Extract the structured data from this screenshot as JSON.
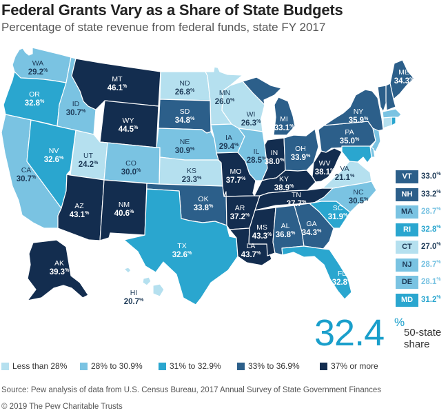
{
  "title": "Federal Grants Vary as a Share of State Budgets",
  "subtitle": "Percentage of state revenue from federal funds, state FY 2017",
  "colors": {
    "c1": "#b5e0ef",
    "c2": "#7ac3e2",
    "c3": "#2aa6cf",
    "c4": "#2c5f8a",
    "c5": "#132d4f"
  },
  "legend": [
    {
      "label": "Less than 28%",
      "color": "c1"
    },
    {
      "label": "28% to 30.9%",
      "color": "c2"
    },
    {
      "label": "31% to 32.9%",
      "color": "c3"
    },
    {
      "label": "33% to 36.9%",
      "color": "c4"
    },
    {
      "label": "37% or more",
      "color": "c5"
    }
  ],
  "states": [
    {
      "abbr": "WA",
      "value": "29.2",
      "color": "c2"
    },
    {
      "abbr": "OR",
      "value": "32.8",
      "color": "c3"
    },
    {
      "abbr": "CA",
      "value": "30.7",
      "color": "c2"
    },
    {
      "abbr": "ID",
      "value": "30.7",
      "color": "c2"
    },
    {
      "abbr": "NV",
      "value": "32.6",
      "color": "c3"
    },
    {
      "abbr": "MT",
      "value": "46.1",
      "color": "c5"
    },
    {
      "abbr": "WY",
      "value": "44.5",
      "color": "c5"
    },
    {
      "abbr": "UT",
      "value": "24.2",
      "color": "c1"
    },
    {
      "abbr": "AZ",
      "value": "43.1",
      "color": "c5"
    },
    {
      "abbr": "CO",
      "value": "30.0",
      "color": "c2"
    },
    {
      "abbr": "NM",
      "value": "40.6",
      "color": "c5"
    },
    {
      "abbr": "ND",
      "value": "26.8",
      "color": "c1"
    },
    {
      "abbr": "SD",
      "value": "34.8",
      "color": "c4"
    },
    {
      "abbr": "NE",
      "value": "30.9",
      "color": "c2"
    },
    {
      "abbr": "KS",
      "value": "23.3",
      "color": "c1"
    },
    {
      "abbr": "OK",
      "value": "33.8",
      "color": "c4"
    },
    {
      "abbr": "TX",
      "value": "32.6",
      "color": "c3"
    },
    {
      "abbr": "MN",
      "value": "26.0",
      "color": "c1"
    },
    {
      "abbr": "IA",
      "value": "29.4",
      "color": "c2"
    },
    {
      "abbr": "MO",
      "value": "37.7",
      "color": "c5"
    },
    {
      "abbr": "AR",
      "value": "37.2",
      "color": "c5"
    },
    {
      "abbr": "LA",
      "value": "43.7",
      "color": "c5"
    },
    {
      "abbr": "WI",
      "value": "26.3",
      "color": "c1"
    },
    {
      "abbr": "IL",
      "value": "28.5",
      "color": "c2"
    },
    {
      "abbr": "MI",
      "value": "33.1",
      "color": "c4"
    },
    {
      "abbr": "IN",
      "value": "38.0",
      "color": "c5"
    },
    {
      "abbr": "OH",
      "value": "33.9",
      "color": "c4"
    },
    {
      "abbr": "KY",
      "value": "38.9",
      "color": "c5"
    },
    {
      "abbr": "TN",
      "value": "37.7",
      "color": "c5"
    },
    {
      "abbr": "MS",
      "value": "43.3",
      "color": "c5"
    },
    {
      "abbr": "AL",
      "value": "36.8",
      "color": "c4"
    },
    {
      "abbr": "GA",
      "value": "34.3",
      "color": "c4"
    },
    {
      "abbr": "FL",
      "value": "32.8",
      "color": "c3"
    },
    {
      "abbr": "SC",
      "value": "31.9",
      "color": "c3"
    },
    {
      "abbr": "NC",
      "value": "30.5",
      "color": "c2"
    },
    {
      "abbr": "VA",
      "value": "21.1",
      "color": "c1"
    },
    {
      "abbr": "WV",
      "value": "38.1",
      "color": "c5"
    },
    {
      "abbr": "PA",
      "value": "35.0",
      "color": "c4"
    },
    {
      "abbr": "NY",
      "value": "35.9",
      "color": "c4"
    },
    {
      "abbr": "ME",
      "value": "34.3",
      "color": "c4"
    },
    {
      "abbr": "AK",
      "value": "39.3",
      "color": "c5"
    },
    {
      "abbr": "HI",
      "value": "20.7",
      "color": "c1"
    }
  ],
  "small_states": [
    {
      "abbr": "VT",
      "value": "33.0",
      "color": "c4"
    },
    {
      "abbr": "NH",
      "value": "33.2",
      "color": "c4"
    },
    {
      "abbr": "MA",
      "value": "28.7",
      "color": "c2"
    },
    {
      "abbr": "RI",
      "value": "32.8",
      "color": "c3"
    },
    {
      "abbr": "CT",
      "value": "27.0",
      "color": "c1"
    },
    {
      "abbr": "NJ",
      "value": "28.7",
      "color": "c2"
    },
    {
      "abbr": "DE",
      "value": "28.1",
      "color": "c2"
    },
    {
      "abbr": "MD",
      "value": "31.2",
      "color": "c3"
    }
  ],
  "national": {
    "value": "32.4",
    "unit": "%",
    "label_line1": "50-state",
    "label_line2": "share"
  },
  "percent_sign": "%",
  "source": "Source: Pew analysis of data from U.S. Census Bureau, 2017 Annual Survey of State Government Finances",
  "copyright": "© 2019 The Pew Charitable Trusts"
}
